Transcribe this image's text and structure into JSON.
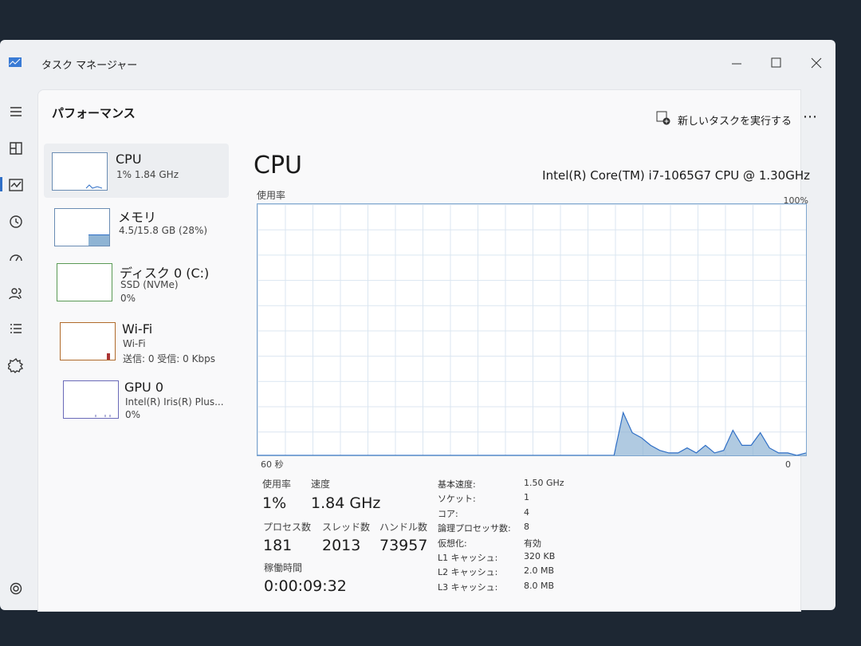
{
  "window": {
    "title": "タスク マネージャー"
  },
  "header": {
    "title": "パフォーマンス",
    "run_task": "新しいタスクを実行する"
  },
  "sidebar": [
    {
      "name": "CPU",
      "line1": "1%  1.84 GHz"
    },
    {
      "name": "メモリ",
      "line1": "4.5/15.8 GB (28%)"
    },
    {
      "name": "ディスク 0 (C:)",
      "line1": "SSD (NVMe)",
      "line2": "0%"
    },
    {
      "name": "Wi-Fi",
      "line1": "Wi-Fi",
      "line2": "送信: 0 受信: 0 Kbps"
    },
    {
      "name": "GPU 0",
      "line1": "Intel(R) Iris(R) Plus...",
      "line2": "0%"
    }
  ],
  "detail": {
    "title": "CPU",
    "model": "Intel(R) Core(TM) i7-1065G7 CPU @ 1.30GHz"
  },
  "cpu_graph": {
    "type": "area",
    "y_label": "使用率",
    "ylim": [
      0,
      100
    ],
    "yticks": [
      {
        "value": 100,
        "label": "100%"
      }
    ],
    "xlim": [
      -60,
      0
    ],
    "xticks": [
      {
        "value": -60,
        "label": "60 秒"
      },
      0
    ],
    "color": "#8fb4d4",
    "x": [
      -60,
      -59,
      -58,
      -57,
      -56,
      -55,
      -54,
      -53,
      -52,
      -51,
      -50,
      -49,
      -48,
      -47,
      -46,
      -45,
      -44,
      -43,
      -42,
      -41,
      -40,
      -39,
      -38,
      -37,
      -36,
      -35,
      -34,
      -33,
      -32,
      -31,
      -30,
      -29,
      -28,
      -27,
      -26,
      -25,
      -24,
      -23,
      -22,
      -21,
      -20,
      -19,
      -18,
      -17,
      -16,
      -15,
      -14,
      -13,
      -12,
      -11,
      -10,
      -9,
      -8,
      -7,
      -6,
      -5,
      -4,
      -3,
      -2,
      -1,
      0
    ],
    "values": [
      0,
      0,
      0,
      0,
      0,
      0,
      0,
      0,
      0,
      0,
      0,
      0,
      0,
      0,
      0,
      0,
      0,
      0,
      0,
      0,
      0,
      0,
      0,
      0,
      0,
      0,
      0,
      0,
      0,
      0,
      0,
      0,
      0,
      0,
      0,
      0,
      0,
      0,
      0,
      0,
      17,
      9,
      7,
      4,
      2,
      1,
      1,
      3,
      1,
      4,
      1,
      2,
      10,
      4,
      4,
      9,
      3,
      1,
      1,
      0,
      1
    ]
  },
  "stats": [
    {
      "label": "使用率",
      "value": "1%"
    },
    {
      "label": "速度",
      "value": "1.84 GHz"
    },
    {
      "label": "プロセス数",
      "value": 181
    },
    {
      "label": "スレッド数",
      "value": 2013
    },
    {
      "label": "ハンドル数",
      "value": 73957
    },
    {
      "label": "稼働時間",
      "value": "0:00:09:32"
    }
  ],
  "specs": [
    {
      "label": "基本速度:",
      "value": "1.50 GHz"
    },
    {
      "label": "ソケット:",
      "value": 1
    },
    {
      "label": "コア:",
      "value": 4
    },
    {
      "label": "論理プロセッサ数:",
      "value": 8
    },
    {
      "label": "仮想化:",
      "value": "有効"
    },
    {
      "label": "L1 キャッシュ:",
      "value": "320 KB"
    },
    {
      "label": "L2 キャッシュ:",
      "value": "2.0 MB"
    },
    {
      "label": "L3 キャッシュ:",
      "value": "8.0 MB"
    }
  ]
}
